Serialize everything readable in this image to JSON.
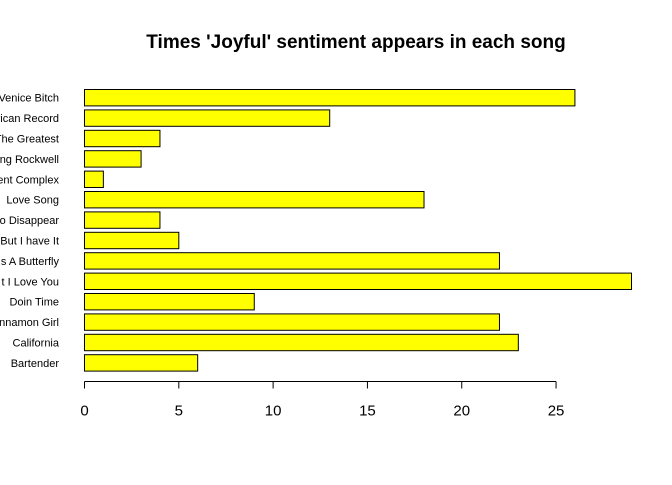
{
  "chart_data": {
    "type": "bar",
    "orientation": "horizontal",
    "title": "Times 'Joyful' sentiment appears in each song",
    "xlabel": "",
    "ylabel": "",
    "categories": [
      "Venice Bitch",
      "rican Record",
      "The Greatest",
      "ng Rockwell",
      "ent Complex",
      "Love Song",
      "to Disappear",
      "But I have It",
      "s A Butterfly",
      "t I Love You",
      "Doin Time",
      "innamon Girl",
      "California",
      "Bartender"
    ],
    "values": [
      26,
      13,
      4,
      3,
      1,
      18,
      4,
      5,
      22,
      29,
      9,
      22,
      23,
      6
    ],
    "xlim": [
      0,
      29
    ],
    "x_ticks": [
      0,
      5,
      10,
      15,
      20,
      25
    ],
    "grid": false,
    "bar_color": "#ffff00",
    "bar_border_color": "#000000"
  }
}
